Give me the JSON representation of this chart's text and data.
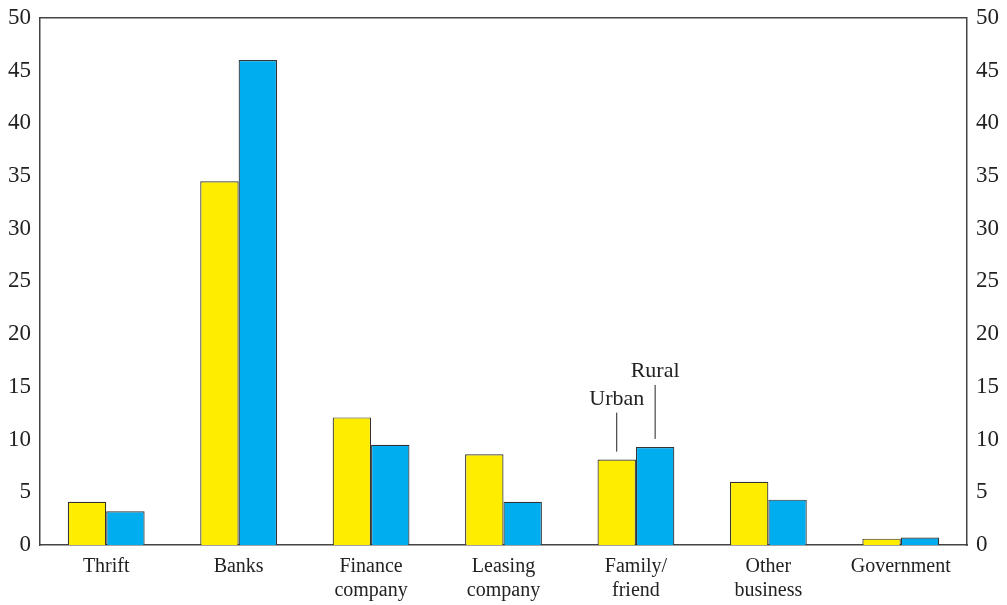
{
  "chart_data": {
    "type": "bar",
    "categories": [
      "Thrift",
      "Banks",
      "Finance company",
      "Leasing company",
      "Family/ friend",
      "Other business",
      "Government"
    ],
    "series": [
      {
        "color": "#ffed00",
        "values": [
          4.1,
          34.5,
          12.1,
          8.6,
          8.1,
          6.0,
          0.6
        ]
      },
      {
        "color": "#00aeef",
        "values": [
          3.2,
          46.0,
          9.5,
          4.1,
          9.3,
          4.3,
          0.7
        ]
      }
    ],
    "ylim": [
      0,
      50
    ],
    "yticks": [
      0,
      5,
      10,
      15,
      20,
      25,
      30,
      35,
      40,
      45,
      50
    ],
    "y2lim": [
      0,
      50
    ],
    "y2ticks": [
      0,
      5,
      10,
      15,
      20,
      25,
      30,
      35,
      40,
      45,
      50
    ],
    "annotations": [
      {
        "text": "Urban",
        "x": "Family/ friend",
        "y": 8.1
      },
      {
        "text": "Rural",
        "x": "Family/ friend",
        "y": 9.3
      }
    ],
    "grid": false,
    "legend": false
  }
}
